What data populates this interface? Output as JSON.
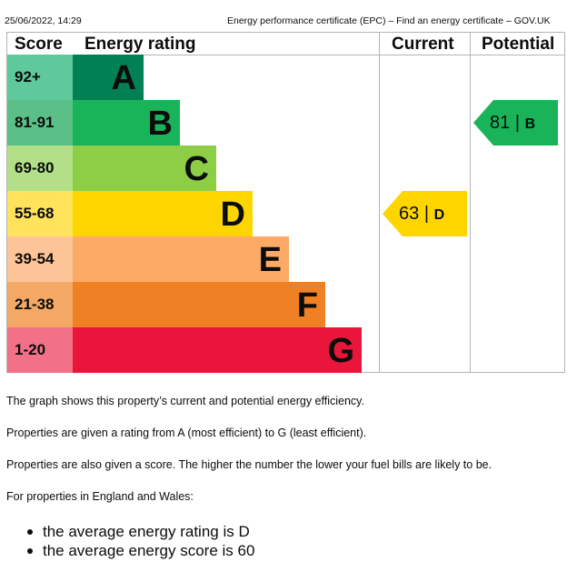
{
  "header": {
    "timestamp": "25/06/2022, 14:29",
    "title": "Energy performance certificate (EPC) – Find an energy certificate – GOV.UK"
  },
  "chart_data": {
    "type": "table",
    "columns": [
      "Score",
      "Energy rating",
      "Current",
      "Potential"
    ],
    "bands": [
      {
        "score": "92+",
        "letter": "A",
        "color": "#008054"
      },
      {
        "score": "81-91",
        "letter": "B",
        "color": "#19b459"
      },
      {
        "score": "69-80",
        "letter": "C",
        "color": "#8dce46"
      },
      {
        "score": "55-68",
        "letter": "D",
        "color": "#ffd500"
      },
      {
        "score": "39-54",
        "letter": "E",
        "color": "#fcaa65"
      },
      {
        "score": "21-38",
        "letter": "F",
        "color": "#ef8023"
      },
      {
        "score": "1-20",
        "letter": "G",
        "color": "#e9153b"
      }
    ],
    "current": {
      "score": "63",
      "separator": "|",
      "band": "D",
      "color": "#ffd500"
    },
    "potential": {
      "score": "81",
      "separator": "|",
      "band": "B",
      "color": "#19b459"
    }
  },
  "paragraphs": [
    "The graph shows this property’s current and potential energy efficiency.",
    "Properties are given a rating from A (most efficient) to G (least efficient).",
    "Properties are also given a score. The higher the number the lower your fuel bills are likely to be.",
    "For properties in England and Wales:"
  ],
  "bullets": [
    "the average energy rating is D",
    "the average energy score is 60"
  ]
}
